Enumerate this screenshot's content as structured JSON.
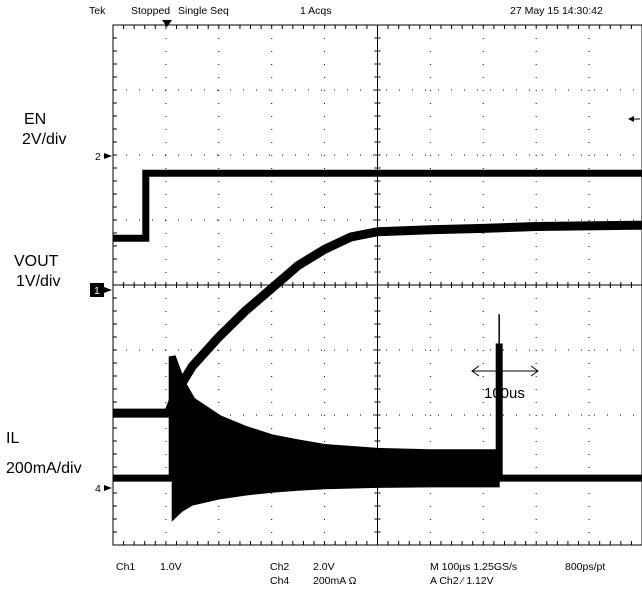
{
  "status": {
    "brand": "Tek",
    "state": "Stopped",
    "mode": "Single Seq",
    "acqs": "1 Acqs",
    "datetime": "27 May 15 14:30:42"
  },
  "channels": {
    "en": {
      "name": "EN",
      "scale": "2V/div",
      "marker": "2"
    },
    "vout": {
      "name": "VOUT",
      "scale": "1V/div",
      "marker": "1"
    },
    "il": {
      "name": "IL",
      "scale": "200mA/div",
      "marker": "4"
    }
  },
  "annotation": {
    "label": "100us"
  },
  "readout": {
    "ch1_name": "Ch1",
    "ch1_scale": "1.0V",
    "ch2_name": "Ch2",
    "ch2_scale": "2.0V",
    "ch4_name": "Ch4",
    "ch4_scale": "200mA  Ω",
    "timebase": "M 100µs 1.25GS/s",
    "resolution": "800ps/pt",
    "trigger": "A  Ch2  ⁄  1.12V"
  },
  "chart_data": {
    "type": "line",
    "grid": true,
    "x_divisions": 10,
    "y_divisions": 8,
    "series": [
      {
        "name": "EN",
        "points": [
          [
            0,
            4.72
          ],
          [
            0.62,
            4.72
          ],
          [
            0.62,
            5.72
          ],
          [
            10,
            5.72
          ]
        ]
      },
      {
        "name": "VOUT",
        "points": [
          [
            0,
            2.03
          ],
          [
            1.05,
            2.03
          ],
          [
            1.2,
            2.35
          ],
          [
            1.5,
            2.75
          ],
          [
            2,
            3.2
          ],
          [
            2.5,
            3.6
          ],
          [
            3,
            3.95
          ],
          [
            3.5,
            4.3
          ],
          [
            4,
            4.55
          ],
          [
            4.5,
            4.74
          ],
          [
            5,
            4.82
          ],
          [
            6,
            4.85
          ],
          [
            7,
            4.87
          ],
          [
            8,
            4.9
          ],
          [
            10,
            4.92
          ]
        ]
      },
      {
        "name": "IL",
        "points": [
          [
            0,
            1.03
          ],
          [
            1.12,
            1.03
          ],
          [
            1.12,
            2.9
          ],
          [
            1.3,
            2.5
          ],
          [
            1.5,
            2.22
          ],
          [
            2,
            1.95
          ],
          [
            2.5,
            1.78
          ],
          [
            3,
            1.65
          ],
          [
            3.5,
            1.57
          ],
          [
            4,
            1.5
          ],
          [
            5,
            1.44
          ],
          [
            6,
            1.42
          ],
          [
            7,
            1.42
          ],
          [
            7.3,
            1.42
          ],
          [
            7.3,
            3.1
          ],
          [
            7.3,
            1.03
          ],
          [
            10,
            1.03
          ]
        ]
      }
    ]
  }
}
